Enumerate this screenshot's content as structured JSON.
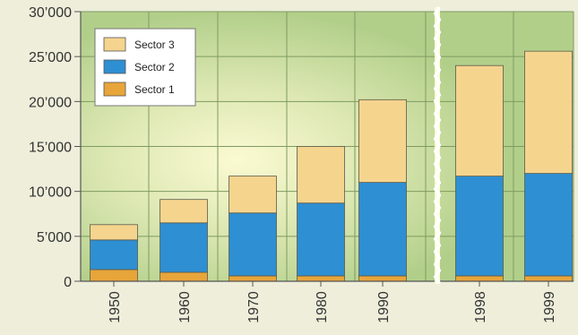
{
  "chart_data": {
    "type": "bar",
    "stacked": true,
    "categories": [
      "1950",
      "1960",
      "1970",
      "1980",
      "1990",
      "1998",
      "1999"
    ],
    "series": [
      {
        "name": "Sector 1",
        "color": "#e8a53a",
        "values": [
          1300,
          1000,
          600,
          600,
          600,
          600,
          600
        ]
      },
      {
        "name": "Sector 2",
        "color": "#2e8fd3",
        "values": [
          3300,
          5500,
          7000,
          8100,
          10400,
          11100,
          11400
        ]
      },
      {
        "name": "Sector 3",
        "color": "#f5d48e",
        "values": [
          1700,
          2600,
          4100,
          6300,
          9200,
          12300,
          13600
        ]
      }
    ],
    "ylim": [
      0,
      30000
    ],
    "yticks": [
      "0",
      "5’000",
      "10’000",
      "15’000",
      "20’000",
      "25’000",
      "30’000"
    ],
    "axis_break_after": "1990",
    "grid": true,
    "legend": {
      "position": "top-left",
      "entries": [
        "Sector 3",
        "Sector 2",
        "Sector 1"
      ]
    },
    "colors": {
      "plot_background": "#b2cf8a",
      "plot_glow": "#fbfad2",
      "gridline": "#7f9b62",
      "axis": "#555555",
      "break_mark": "#ffffff"
    }
  }
}
